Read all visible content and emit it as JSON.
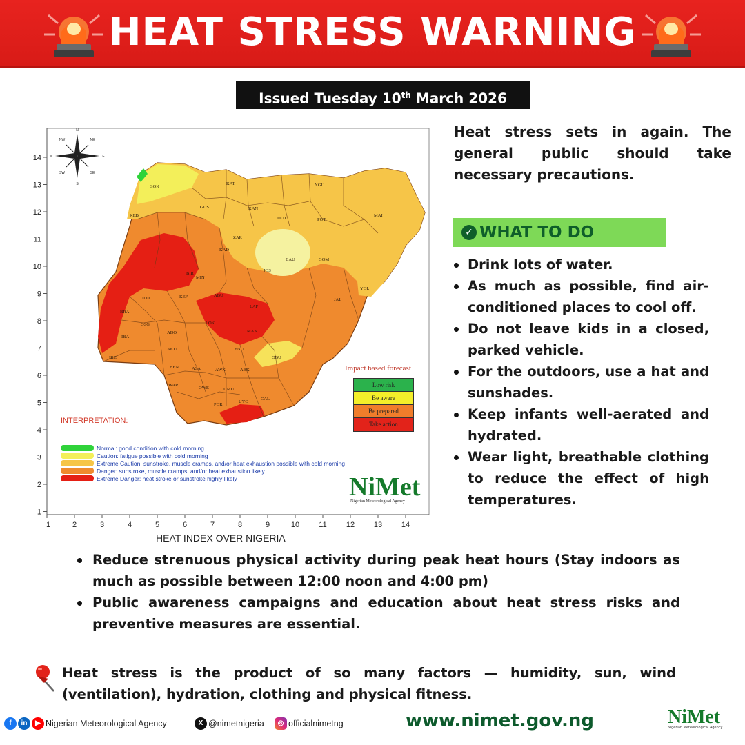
{
  "header": {
    "title": "HEAT STRESS WARNING",
    "issued": "Issued Tuesday 10",
    "issued_sup": "th",
    "issued_tail": " March 2026",
    "accent": "#e8231f"
  },
  "map": {
    "caption": "HEAT INDEX OVER NIGERIA",
    "x_ticks": [
      "1",
      "2",
      "3",
      "4",
      "5",
      "6",
      "7",
      "8",
      "9",
      "10",
      "11",
      "12",
      "13",
      "14"
    ],
    "y_ticks": [
      "14",
      "13",
      "12",
      "11",
      "10",
      "9",
      "8",
      "7",
      "6",
      "5",
      "4",
      "3",
      "2",
      "1"
    ],
    "compass": [
      "N",
      "S",
      "E",
      "W",
      "NE",
      "NW",
      "SE",
      "SW"
    ],
    "states": [
      "SOK",
      "KAT",
      "NGU",
      "KEB",
      "GUS",
      "KAN",
      "DUT",
      "POT",
      "MAI",
      "ZAR",
      "BAU",
      "KAD",
      "GOM",
      "JOS",
      "MIN",
      "YOL",
      "ABU",
      "LAF",
      "JAL",
      "ILO",
      "MAK",
      "IBA",
      "ADO",
      "OSG",
      "LOK",
      "AKU",
      "ENU",
      "OBU",
      "BEN",
      "ASA",
      "AWK",
      "ABK",
      "WAR",
      "OWE",
      "UMU",
      "POR",
      "UYO",
      "CAL",
      "IKE",
      "KEF",
      "BIR",
      "BRA"
    ],
    "interpretation_title": "INTERPRETATION:",
    "legend": [
      {
        "color": "#2fd33a",
        "text": "Normal: good condition with cold morning"
      },
      {
        "color": "#f3ef5a",
        "text": "Caution: fatigue possible  with cold morning"
      },
      {
        "color": "#f6c548",
        "text": "Extreme Caution: sunstroke, muscle cramps, and/or heat exhaustion possible  with cold morning"
      },
      {
        "color": "#ef8a2e",
        "text": "Danger: sunstroke, muscle cramps, and/or heat exhaustion likely"
      },
      {
        "color": "#e51f14",
        "text": "Extreme Danger: heat stroke or sunstroke highly likely"
      }
    ],
    "impact_title": "Impact based forecast",
    "impact": [
      {
        "color": "#2bb24c",
        "text": "Low risk"
      },
      {
        "color": "#f4ef2a",
        "text": "Be aware"
      },
      {
        "color": "#f07d2b",
        "text": "Be prepared"
      },
      {
        "color": "#e2231a",
        "text": "Take action"
      }
    ],
    "logo_word": "NiMet",
    "logo_sub": "Nigerian Meteorological Agency"
  },
  "intro": "Heat stress sets in again. The general public should take necessary precautions.",
  "what_to_do": {
    "label": "WHAT TO DO",
    "items": [
      "Drink lots of water.",
      "As much as possible, find air-conditioned places to cool off.",
      "Do not leave kids in a closed, parked vehicle.",
      "For the outdoors, use a hat and sunshades.",
      "Keep infants well-aerated and hydrated.",
      "Wear light, breathable clothing to reduce the effect of high temperatures."
    ]
  },
  "bottom_items": [
    "Reduce strenuous physical activity during peak heat hours (Stay indoors as much as possible between 12:00 noon and 4:00 pm)",
    "Public awareness campaigns and education about heat stress risks and preventive measures are essential."
  ],
  "factors": "Heat stress is the product of so many factors — humidity, sun, wind (ventilation), hydration, clothing and physical fitness.",
  "footer": {
    "agency": "Nigerian Meteorological Agency",
    "x_handle": "@nimetnigeria",
    "ig_handle": "officialnimetng",
    "website": "www.nimet.gov.ng",
    "logo_word": "NiMet",
    "logo_sub": "Nigerian Meteorological Agency"
  }
}
